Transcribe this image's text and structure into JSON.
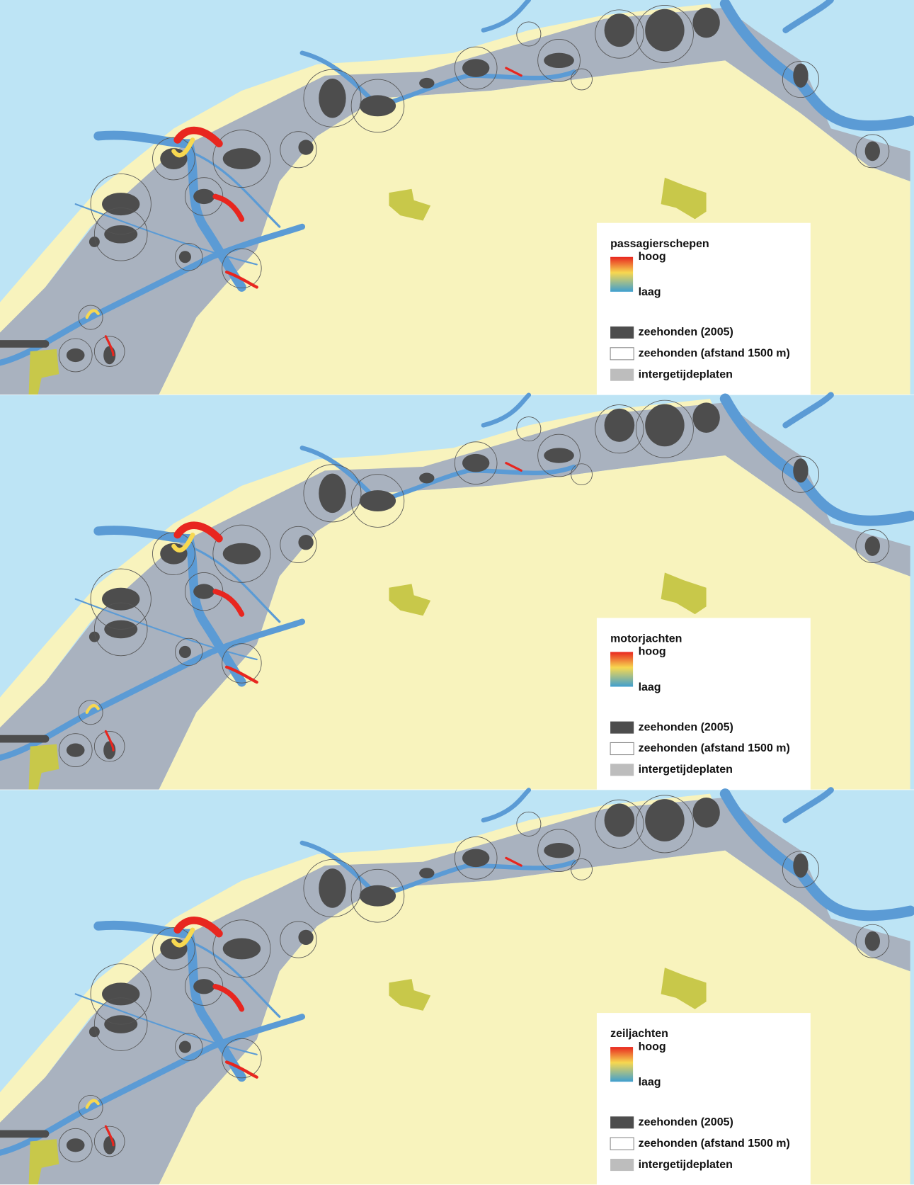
{
  "panels": [
    {
      "legend": {
        "title": "passagierschepen",
        "high": "hoog",
        "low": "laag",
        "items": [
          "zeehonden (2005)",
          "zeehonden (afstand 1500 m)",
          "intergetijdeplaten"
        ]
      }
    },
    {
      "legend": {
        "title": "motorjachten",
        "high": "hoog",
        "low": "laag",
        "items": [
          "zeehonden (2005)",
          "zeehonden (afstand 1500 m)",
          "intergetijdeplaten"
        ]
      }
    },
    {
      "legend": {
        "title": "zeiljachten",
        "high": "hoog",
        "low": "laag",
        "items": [
          "zeehonden (2005)",
          "zeehonden (afstand 1500 m)",
          "intergetijdeplaten"
        ]
      }
    }
  ]
}
